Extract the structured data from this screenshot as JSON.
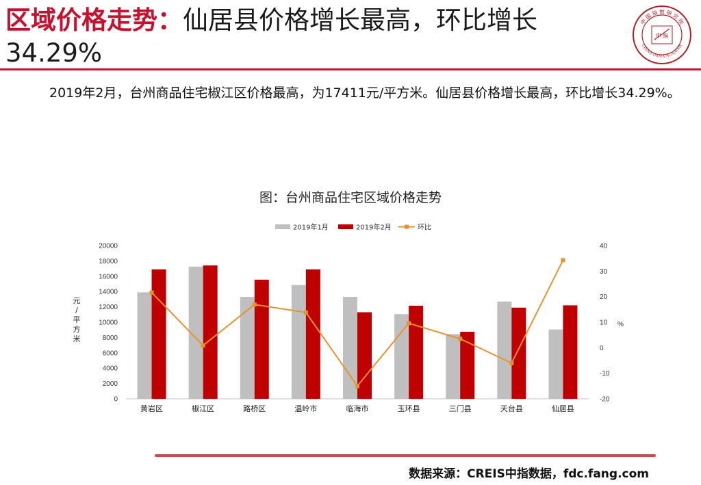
{
  "header": {
    "title_highlight": "区域价格走势：",
    "title_rest": "仙居县价格增长最高，环比增长34.29%",
    "logo_text_top": "中 国 指 数 研 究 院",
    "logo_text_bottom": "CHINA INDEX ACADEMY",
    "logo_center": "中 指"
  },
  "summary": {
    "text": "2019年2月，台州商品住宅椒江区价格最高，为17411元/平方米。仙居县价格增长最高，环比增长34.29%。"
  },
  "chart_data": {
    "type": "bar",
    "title": "图：台州商品住宅区域价格走势",
    "categories": [
      "黄岩区",
      "椒江区",
      "路桥区",
      "温岭市",
      "临海市",
      "玉环县",
      "三门县",
      "天台县",
      "仙居县"
    ],
    "series": [
      {
        "name": "2019年1月",
        "type": "bar",
        "axis": "left",
        "color": "#bfbfbf",
        "values": [
          13900,
          17250,
          13300,
          14850,
          13300,
          11050,
          8450,
          12700,
          9050
        ]
      },
      {
        "name": "2019年2月",
        "type": "bar",
        "axis": "left",
        "color": "#c00000",
        "values": [
          16900,
          17411,
          15550,
          16900,
          11300,
          12150,
          8750,
          11900,
          12200
        ]
      },
      {
        "name": "环比",
        "type": "line",
        "axis": "right",
        "color": "#e8922d",
        "values": [
          21.6,
          0.9,
          16.9,
          13.8,
          -15.0,
          9.6,
          3.5,
          -6.0,
          34.29
        ]
      }
    ],
    "ylabel": "元/平方米",
    "ylim": [
      0,
      20000
    ],
    "yticks": [
      0,
      2000,
      4000,
      6000,
      8000,
      10000,
      12000,
      14000,
      16000,
      18000,
      20000
    ],
    "y2label": "%",
    "y2lim": [
      -20,
      40
    ],
    "y2ticks": [
      -20,
      -10,
      0,
      10,
      20,
      30,
      40
    ],
    "legend": "top-center",
    "grid": false
  },
  "footer": {
    "source": "数据来源：CREIS中指数据，fdc.fang.com"
  }
}
